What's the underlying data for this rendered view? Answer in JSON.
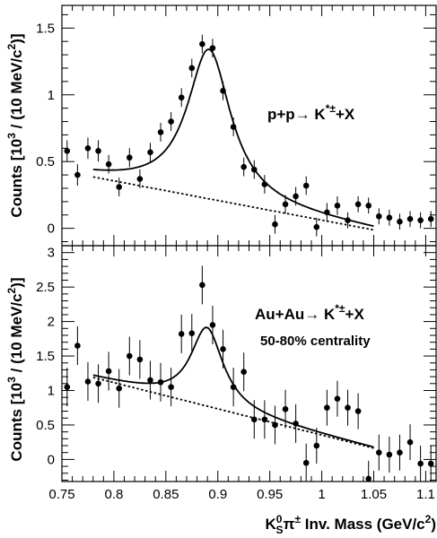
{
  "chart_data": [
    {
      "type": "scatter",
      "annotation": "p+p→ K*±+X",
      "annotation_parts": {
        "base": "p+p→ K",
        "sup": "*±",
        "tail": "+X"
      },
      "ylabel": "Counts [10³ / (10 MeV/c²)]",
      "ylabel_parts": {
        "a": "Counts [10",
        "b": "3",
        "c": " / (10 MeV/c",
        "d": "2",
        "e": ")]"
      },
      "xlim": [
        0.75,
        1.11
      ],
      "ylim": [
        -0.13,
        1.67
      ],
      "yticks": [
        0,
        0.5,
        1,
        1.5
      ],
      "ytick_labels": [
        "0",
        "0.5",
        "1",
        "1.5"
      ],
      "x": [
        0.755,
        0.765,
        0.775,
        0.785,
        0.795,
        0.805,
        0.815,
        0.825,
        0.835,
        0.845,
        0.855,
        0.865,
        0.875,
        0.885,
        0.895,
        0.905,
        0.915,
        0.925,
        0.935,
        0.945,
        0.955,
        0.965,
        0.975,
        0.985,
        0.995,
        1.005,
        1.015,
        1.025,
        1.035,
        1.045,
        1.055,
        1.065,
        1.075,
        1.085,
        1.095,
        1.105
      ],
      "y": [
        0.58,
        0.4,
        0.6,
        0.58,
        0.48,
        0.31,
        0.53,
        0.37,
        0.57,
        0.72,
        0.8,
        0.98,
        1.2,
        1.38,
        1.35,
        1.03,
        0.76,
        0.46,
        0.44,
        0.33,
        0.03,
        0.18,
        0.24,
        0.32,
        0.01,
        0.12,
        0.17,
        0.06,
        0.18,
        0.17,
        0.09,
        0.08,
        0.05,
        0.07,
        0.06,
        0.07
      ],
      "yerr": [
        0.08,
        0.08,
        0.08,
        0.08,
        0.07,
        0.07,
        0.07,
        0.07,
        0.07,
        0.07,
        0.07,
        0.07,
        0.07,
        0.07,
        0.07,
        0.07,
        0.07,
        0.07,
        0.07,
        0.07,
        0.07,
        0.07,
        0.07,
        0.07,
        0.07,
        0.07,
        0.07,
        0.06,
        0.06,
        0.06,
        0.06,
        0.06,
        0.06,
        0.06,
        0.06,
        0.06
      ],
      "fit": {
        "x0": 0.78,
        "x1": 1.05,
        "mass": 0.8915,
        "gamma": 0.051,
        "amp": 1.12,
        "bg_a": 0.385,
        "bg_b": -1.47
      }
    },
    {
      "type": "scatter",
      "annotation": "Au+Au→ K*±+X",
      "annotation_parts": {
        "base": "Au+Au→ K",
        "sup": "*±",
        "tail": "+X"
      },
      "subtitle": "50-80% centrality",
      "ylabel": "Counts [10³ / (10 MeV/c²)]",
      "ylabel_parts": {
        "a": "Counts [10",
        "b": "3",
        "c": " / (10 MeV/c",
        "d": "2",
        "e": ")]"
      },
      "xlabel": "K⁰Sπ± Inv. Mass (GeV/c²)",
      "xlabel_parts": {
        "k": "K",
        "sup0": "0",
        "subS": "S",
        "pi": "π",
        "pm": "±",
        "rest": " Inv. Mass (GeV/c",
        "two": "2",
        "end": ")"
      },
      "xlim": [
        0.75,
        1.11
      ],
      "ylim": [
        -0.32,
        3.1
      ],
      "yticks": [
        0,
        0.5,
        1,
        1.5,
        2,
        2.5,
        3
      ],
      "ytick_labels": [
        "0",
        "0.5",
        "1",
        "1.5",
        "2",
        "2.5",
        "3"
      ],
      "xticks": [
        0.75,
        0.8,
        0.85,
        0.9,
        0.95,
        1.0,
        1.05,
        1.1
      ],
      "xtick_labels": [
        "0.75",
        "0.8",
        "0.85",
        "0.9",
        "0.95",
        "1",
        "1.05",
        "1.1"
      ],
      "x": [
        0.755,
        0.765,
        0.775,
        0.785,
        0.795,
        0.805,
        0.815,
        0.825,
        0.835,
        0.845,
        0.855,
        0.865,
        0.875,
        0.885,
        0.895,
        0.905,
        0.915,
        0.925,
        0.935,
        0.945,
        0.955,
        0.965,
        0.975,
        0.985,
        0.995,
        1.005,
        1.015,
        1.025,
        1.035,
        1.045,
        1.055,
        1.065,
        1.075,
        1.085,
        1.095,
        1.105
      ],
      "y": [
        1.05,
        1.65,
        1.13,
        1.1,
        1.28,
        1.03,
        1.5,
        1.45,
        1.15,
        1.12,
        1.05,
        1.82,
        1.83,
        2.53,
        1.95,
        1.6,
        1.05,
        1.27,
        0.58,
        0.58,
        0.5,
        0.73,
        0.52,
        -0.05,
        0.2,
        0.75,
        0.88,
        0.75,
        0.7,
        -0.28,
        0.1,
        0.07,
        0.1,
        0.25,
        -0.06,
        -0.06
      ],
      "yerr": [
        0.28,
        0.28,
        0.28,
        0.28,
        0.28,
        0.28,
        0.28,
        0.28,
        0.28,
        0.28,
        0.28,
        0.28,
        0.28,
        0.28,
        0.28,
        0.28,
        0.28,
        0.28,
        0.28,
        0.28,
        0.28,
        0.28,
        0.28,
        0.28,
        0.26,
        0.26,
        0.26,
        0.26,
        0.26,
        0.26,
        0.26,
        0.26,
        0.26,
        0.26,
        0.26,
        0.26
      ],
      "fit": {
        "x0": 0.78,
        "x1": 1.05,
        "mass": 0.8895,
        "gamma": 0.038,
        "amp": 1.14,
        "bg_a": 1.19,
        "bg_b": -3.8
      }
    }
  ]
}
